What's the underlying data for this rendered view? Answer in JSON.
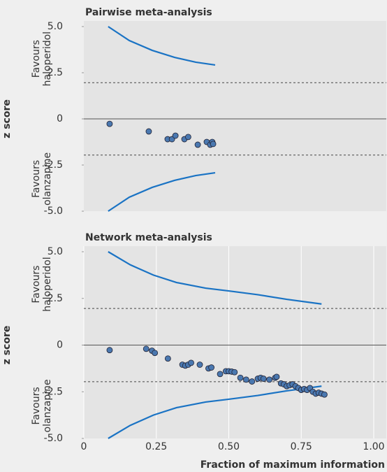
{
  "chart_data": [
    {
      "type": "scatter",
      "title": "Pairwise meta-analysis",
      "y_label": "z score",
      "upper_label": [
        "Favours",
        "haloperidol"
      ],
      "lower_label": [
        "Favours",
        "olanzapine"
      ],
      "xlim": [
        0,
        1
      ],
      "ylim": [
        -5,
        5
      ],
      "yticks": [
        {
          "value": 5,
          "label": "5.0"
        },
        2.5,
        0,
        -2.5,
        {
          "value": -5,
          "label": "-5.0"
        }
      ],
      "thresholds": [
        1.96,
        -1.96
      ],
      "series": [
        {
          "kind": "line",
          "color": "#1a73c4",
          "x": [
            0.084,
            0.157,
            0.236,
            0.313,
            0.386,
            0.453
          ],
          "values": [
            5.0,
            4.24,
            3.71,
            3.33,
            3.07,
            2.92
          ]
        },
        {
          "kind": "line",
          "color": "#1a73c4",
          "x": [
            0.084,
            0.157,
            0.236,
            0.313,
            0.386,
            0.453
          ],
          "values": [
            -5.0,
            -4.24,
            -3.71,
            -3.33,
            -3.07,
            -2.92
          ]
        },
        {
          "kind": "points",
          "color": "#4a78b0",
          "x": [
            0.089,
            0.224,
            0.289,
            0.304,
            0.316,
            0.347,
            0.36,
            0.393,
            0.424,
            0.436,
            0.443,
            0.446
          ],
          "values": [
            -0.27,
            -0.68,
            -1.1,
            -1.1,
            -0.91,
            -1.1,
            -0.98,
            -1.4,
            -1.25,
            -1.4,
            -1.25,
            -1.36
          ]
        }
      ]
    },
    {
      "type": "scatter",
      "title": "Network meta-analysis",
      "y_label": "z score",
      "x_label": "Fraction of maximum information",
      "upper_label": [
        "Favours",
        "haloperidol"
      ],
      "lower_label": [
        "Favours",
        "olanzapine"
      ],
      "xlim": [
        0,
        1
      ],
      "ylim": [
        -5,
        5
      ],
      "xticks": [
        0,
        0.25,
        {
          "value": 0.5,
          "label": "0.50"
        },
        0.75,
        {
          "value": 1,
          "label": "1.00"
        }
      ],
      "yticks": [
        {
          "value": 5,
          "label": "5.0"
        },
        2.5,
        0,
        -2.5,
        {
          "value": -5,
          "label": "-5.0"
        }
      ],
      "thresholds": [
        1.96,
        -1.96
      ],
      "series": [
        {
          "kind": "line",
          "color": "#1a73c4",
          "x": [
            0.084,
            0.16,
            0.24,
            0.32,
            0.42,
            0.5,
            0.6,
            0.7,
            0.82
          ],
          "values": [
            5.0,
            4.3,
            3.75,
            3.35,
            3.05,
            2.9,
            2.7,
            2.45,
            2.2
          ]
        },
        {
          "kind": "line",
          "color": "#1a73c4",
          "x": [
            0.084,
            0.16,
            0.24,
            0.32,
            0.42,
            0.5,
            0.6,
            0.7,
            0.82
          ],
          "values": [
            -5.0,
            -4.3,
            -3.75,
            -3.35,
            -3.05,
            -2.9,
            -2.7,
            -2.45,
            -2.2
          ]
        },
        {
          "kind": "points",
          "color": "#4a78b0",
          "x": [
            0.089,
            0.215,
            0.235,
            0.245,
            0.29,
            0.34,
            0.35,
            0.36,
            0.37,
            0.4,
            0.43,
            0.44,
            0.47,
            0.49,
            0.5,
            0.51,
            0.52,
            0.54,
            0.56,
            0.58,
            0.6,
            0.61,
            0.62,
            0.64,
            0.66,
            0.665,
            0.68,
            0.69,
            0.7,
            0.71,
            0.72,
            0.73,
            0.74,
            0.75,
            0.76,
            0.77,
            0.78,
            0.79,
            0.8,
            0.81,
            0.82,
            0.83
          ],
          "values": [
            -0.27,
            -0.2,
            -0.3,
            -0.42,
            -0.72,
            -1.05,
            -1.1,
            -1.05,
            -0.95,
            -1.05,
            -1.25,
            -1.2,
            -1.55,
            -1.4,
            -1.4,
            -1.42,
            -1.45,
            -1.75,
            -1.85,
            -1.95,
            -1.8,
            -1.75,
            -1.8,
            -1.85,
            -1.75,
            -1.7,
            -2.05,
            -2.1,
            -2.2,
            -2.15,
            -2.1,
            -2.2,
            -2.3,
            -2.4,
            -2.35,
            -2.4,
            -2.3,
            -2.5,
            -2.6,
            -2.55,
            -2.6,
            -2.65
          ]
        }
      ]
    }
  ]
}
